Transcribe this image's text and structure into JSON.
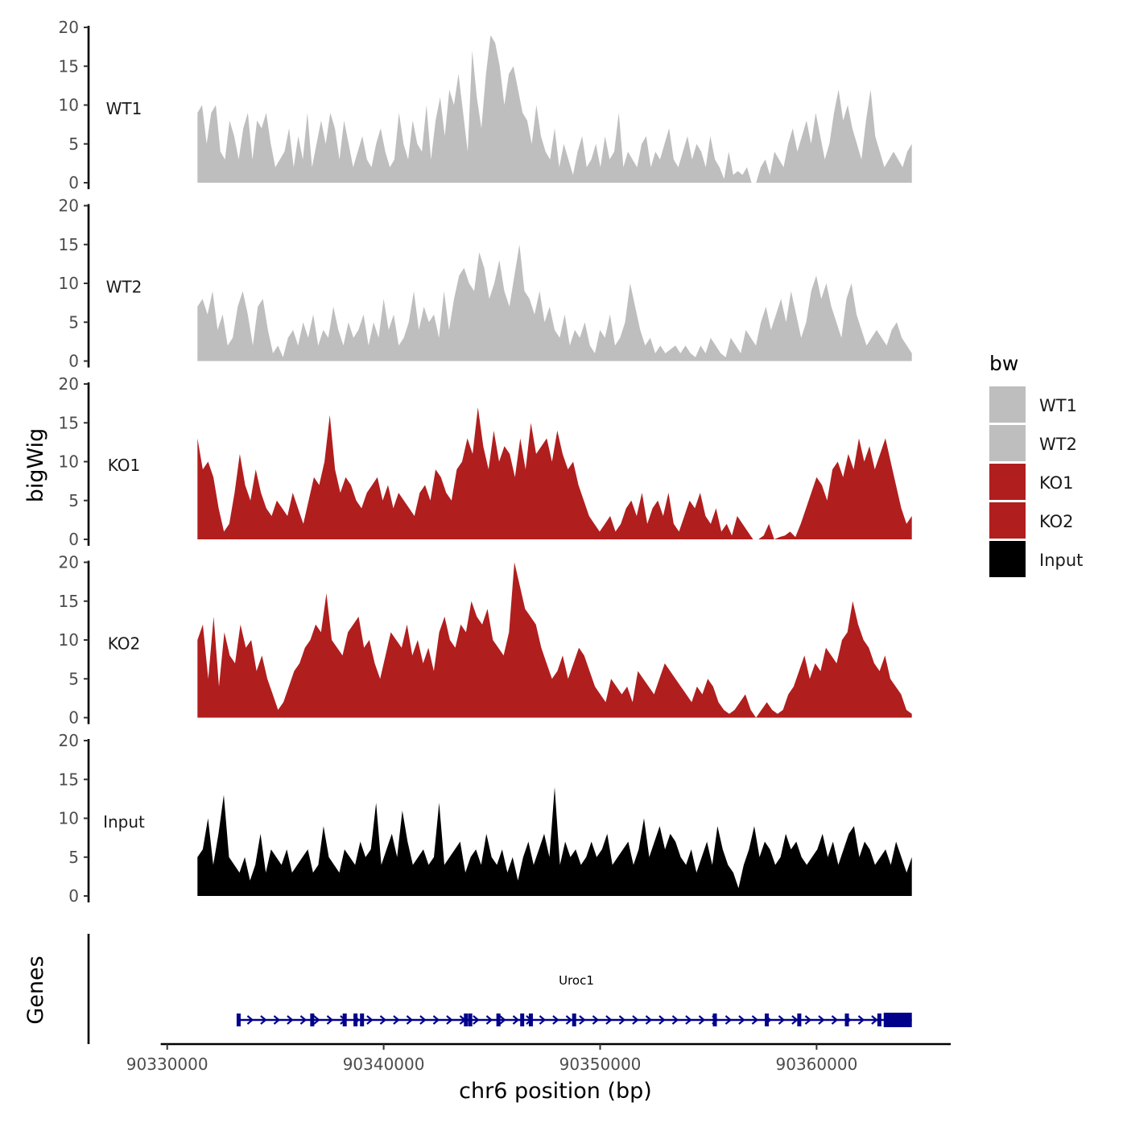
{
  "chart_data": {
    "type": "area",
    "ylabel": "bigWig",
    "xlabel": "chr6 position (bp)",
    "ylim": [
      0,
      20
    ],
    "y_ticks": [
      0,
      5,
      10,
      15,
      20
    ],
    "xlim": [
      90329700,
      90366000
    ],
    "x_ticks": [
      90330000,
      90340000,
      90350000,
      90360000
    ],
    "data_range": [
      90331400,
      90364400
    ],
    "legend_title": "bw",
    "legend_position": "right",
    "tracks": [
      {
        "name": "WT1",
        "color": "#bebebe",
        "values": [
          9,
          10,
          5,
          9,
          10,
          4,
          3,
          8,
          6,
          3,
          7,
          9,
          3,
          8,
          7,
          9,
          5,
          2,
          3,
          4,
          7,
          2,
          6,
          3,
          9,
          2,
          5,
          8,
          5,
          9,
          7,
          3,
          8,
          5,
          2,
          4,
          6,
          3,
          2,
          5,
          7,
          4,
          2,
          3,
          9,
          5,
          3,
          8,
          5,
          4,
          10,
          3,
          8,
          11,
          6,
          12,
          10,
          14,
          9,
          4,
          17,
          11,
          7,
          14,
          19,
          18,
          15,
          10,
          14,
          15,
          12,
          9,
          8,
          5,
          10,
          6,
          4,
          3,
          7,
          2,
          5,
          3,
          1,
          4,
          6,
          2,
          3,
          5,
          2,
          6,
          3,
          4,
          9,
          2,
          4,
          3,
          2,
          5,
          6,
          2,
          4,
          3,
          5,
          7,
          3,
          2,
          4,
          6,
          3,
          5,
          4,
          2,
          6,
          3,
          2,
          0.5,
          4,
          1,
          1.5,
          1,
          2,
          0,
          0,
          2,
          3,
          1,
          4,
          3,
          2,
          5,
          7,
          4,
          6,
          8,
          5,
          9,
          6,
          3,
          5,
          9,
          12,
          8,
          10,
          7,
          5,
          3,
          8,
          12,
          6,
          4,
          2,
          3,
          4,
          3,
          2,
          4,
          5
        ]
      },
      {
        "name": "WT2",
        "color": "#bebebe",
        "values": [
          7,
          8,
          6,
          9,
          4,
          6,
          2,
          3,
          7,
          9,
          6,
          2,
          7,
          8,
          4,
          1,
          2,
          0.5,
          3,
          4,
          2,
          5,
          3,
          6,
          2,
          4,
          3,
          7,
          4,
          2,
          5,
          3,
          4,
          6,
          2,
          5,
          3,
          8,
          4,
          6,
          2,
          3,
          5,
          9,
          4,
          7,
          5,
          6,
          3,
          9,
          4,
          8,
          11,
          12,
          10,
          9,
          14,
          12,
          8,
          10,
          13,
          9,
          7,
          11,
          15,
          9,
          8,
          6,
          9,
          5,
          7,
          4,
          3,
          6,
          2,
          4,
          3,
          5,
          2,
          1,
          4,
          3,
          6,
          2,
          3,
          5,
          10,
          7,
          4,
          2,
          3,
          1,
          2,
          1,
          1.5,
          2,
          1,
          2,
          1,
          0.5,
          2,
          1,
          3,
          2,
          1,
          0.5,
          3,
          2,
          1,
          4,
          3,
          2,
          5,
          7,
          4,
          6,
          8,
          5,
          9,
          6,
          3,
          5,
          9,
          11,
          8,
          10,
          7,
          5,
          3,
          8,
          10,
          6,
          4,
          2,
          3,
          4,
          3,
          2,
          4,
          5,
          3,
          2,
          1
        ]
      },
      {
        "name": "KO1",
        "color": "#b11e1e",
        "values": [
          13,
          9,
          10,
          8,
          4,
          1,
          2,
          6,
          11,
          7,
          5,
          9,
          6,
          4,
          3,
          5,
          4,
          3,
          6,
          4,
          2,
          5,
          8,
          7,
          10,
          16,
          9,
          6,
          8,
          7,
          5,
          4,
          6,
          7,
          8,
          5,
          7,
          4,
          6,
          5,
          4,
          3,
          6,
          7,
          5,
          9,
          8,
          6,
          5,
          9,
          10,
          13,
          11,
          17,
          12,
          9,
          14,
          10,
          12,
          11,
          8,
          13,
          9,
          15,
          11,
          12,
          13,
          10,
          14,
          11,
          9,
          10,
          7,
          5,
          3,
          2,
          1,
          2,
          3,
          1,
          2,
          4,
          5,
          3,
          6,
          2,
          4,
          5,
          3,
          6,
          2,
          1,
          3,
          5,
          4,
          6,
          3,
          2,
          4,
          1,
          2,
          0.5,
          3,
          2,
          1,
          0,
          0,
          0.5,
          2,
          0,
          0.3,
          0.5,
          1,
          0.3,
          2,
          4,
          6,
          8,
          7,
          5,
          9,
          10,
          8,
          11,
          9,
          13,
          10,
          12,
          9,
          11,
          13,
          10,
          7,
          4,
          2,
          3
        ]
      },
      {
        "name": "KO2",
        "color": "#b11e1e",
        "values": [
          10,
          12,
          5,
          13,
          4,
          11,
          8,
          7,
          12,
          9,
          10,
          6,
          8,
          5,
          3,
          1,
          2,
          4,
          6,
          7,
          9,
          10,
          12,
          11,
          16,
          10,
          9,
          8,
          11,
          12,
          13,
          9,
          10,
          7,
          5,
          8,
          11,
          10,
          9,
          12,
          8,
          10,
          7,
          9,
          6,
          11,
          13,
          10,
          9,
          12,
          11,
          15,
          13,
          12,
          14,
          10,
          9,
          8,
          11,
          20,
          17,
          14,
          13,
          12,
          9,
          7,
          5,
          6,
          8,
          5,
          7,
          9,
          8,
          6,
          4,
          3,
          2,
          5,
          4,
          3,
          4,
          2,
          6,
          5,
          4,
          3,
          5,
          7,
          6,
          5,
          4,
          3,
          2,
          4,
          3,
          5,
          4,
          2,
          1,
          0.5,
          1,
          2,
          3,
          1,
          0,
          1,
          2,
          1,
          0.5,
          1,
          3,
          4,
          6,
          8,
          5,
          7,
          6,
          9,
          8,
          7,
          10,
          11,
          15,
          12,
          10,
          9,
          7,
          6,
          8,
          5,
          4,
          3,
          1,
          0.5
        ]
      },
      {
        "name": "Input",
        "color": "#000000",
        "values": [
          5,
          6,
          10,
          4,
          8,
          13,
          5,
          4,
          3,
          5,
          2,
          4,
          8,
          3,
          6,
          5,
          4,
          6,
          3,
          4,
          5,
          6,
          3,
          4,
          9,
          5,
          4,
          3,
          6,
          5,
          4,
          7,
          5,
          6,
          12,
          4,
          6,
          8,
          5,
          11,
          7,
          4,
          5,
          6,
          4,
          5,
          12,
          4,
          5,
          6,
          7,
          3,
          5,
          6,
          4,
          8,
          5,
          4,
          6,
          3,
          5,
          2,
          5,
          7,
          4,
          6,
          8,
          5,
          14,
          4,
          7,
          5,
          6,
          4,
          5,
          7,
          5,
          6,
          8,
          4,
          5,
          6,
          7,
          4,
          6,
          10,
          5,
          7,
          9,
          6,
          8,
          7,
          5,
          4,
          6,
          3,
          5,
          7,
          4,
          9,
          6,
          4,
          3,
          1,
          4,
          6,
          9,
          5,
          7,
          6,
          4,
          5,
          8,
          6,
          7,
          5,
          4,
          5,
          6,
          8,
          5,
          7,
          4,
          6,
          8,
          9,
          5,
          7,
          6,
          4,
          5,
          6,
          4,
          7,
          5,
          3,
          5
        ]
      }
    ],
    "genes_label": "Genes",
    "gene": {
      "name": "Uroc1",
      "start": 90333300,
      "end": 90364400,
      "strand": "+",
      "color": "#00008b",
      "utr_start": 90363100,
      "exon_positions": [
        90333300,
        90336700,
        90338200,
        90338700,
        90339000,
        90343800,
        90344000,
        90345300,
        90346400,
        90346800,
        90348800,
        90355300,
        90357700,
        90359200,
        90361400,
        90362900
      ]
    }
  }
}
